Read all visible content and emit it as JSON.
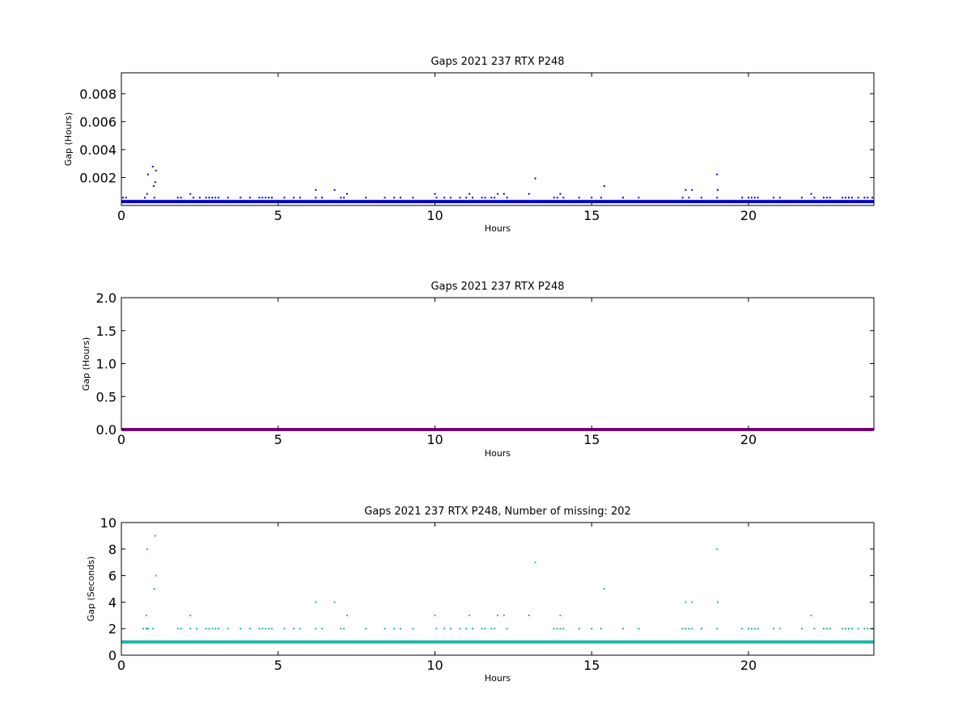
{
  "chart_data": [
    {
      "type": "scatter",
      "title": "Gaps 2021 237 RTX  P248",
      "xlabel": "Hours",
      "ylabel": "Gap (Hours)",
      "xlim": [
        0,
        24
      ],
      "ylim": [
        0,
        0.0095
      ],
      "xticks": [
        0,
        5,
        10,
        15,
        20
      ],
      "yticks": [
        0.002,
        0.004,
        0.006,
        0.008
      ],
      "ytick_labels": [
        "0.002",
        "0.004",
        "0.006",
        "0.008"
      ],
      "baseline": 0.00028,
      "color": "#0000cc",
      "series": [
        {
          "values": [
            [
              0.05,
              0.00056
            ],
            [
              0.15,
              0.00056
            ],
            [
              0.75,
              0.00056
            ],
            [
              0.82,
              0.00083
            ],
            [
              0.85,
              0.00222
            ],
            [
              1.0,
              0.00278
            ],
            [
              1.03,
              0.00139
            ],
            [
              1.05,
              0.00056
            ],
            [
              1.08,
              0.00167
            ],
            [
              1.1,
              0.0025
            ],
            [
              1.8,
              0.00056
            ],
            [
              1.9,
              0.00056
            ],
            [
              2.2,
              0.00083
            ],
            [
              2.3,
              0.00056
            ],
            [
              2.5,
              0.00056
            ],
            [
              2.7,
              0.00056
            ],
            [
              2.8,
              0.00056
            ],
            [
              2.9,
              0.00056
            ],
            [
              3.0,
              0.00056
            ],
            [
              3.1,
              0.00056
            ],
            [
              3.4,
              0.00056
            ],
            [
              3.8,
              0.00056
            ],
            [
              4.1,
              0.00056
            ],
            [
              4.4,
              0.00056
            ],
            [
              4.5,
              0.00056
            ],
            [
              4.6,
              0.00056
            ],
            [
              4.7,
              0.00056
            ],
            [
              4.8,
              0.00056
            ],
            [
              5.2,
              0.00056
            ],
            [
              5.5,
              0.00056
            ],
            [
              5.7,
              0.00056
            ],
            [
              6.2,
              0.00111
            ],
            [
              6.2,
              0.00056
            ],
            [
              6.4,
              0.00056
            ],
            [
              6.8,
              0.00111
            ],
            [
              7.0,
              0.00056
            ],
            [
              7.1,
              0.00056
            ],
            [
              7.2,
              0.00083
            ],
            [
              7.8,
              0.00056
            ],
            [
              8.4,
              0.00056
            ],
            [
              8.7,
              0.00056
            ],
            [
              8.9,
              0.00056
            ],
            [
              9.3,
              0.00056
            ],
            [
              10.0,
              0.00083
            ],
            [
              10.05,
              0.00056
            ],
            [
              10.3,
              0.00056
            ],
            [
              10.5,
              0.00056
            ],
            [
              10.8,
              0.00056
            ],
            [
              11.0,
              0.00056
            ],
            [
              11.1,
              0.00083
            ],
            [
              11.2,
              0.00056
            ],
            [
              11.5,
              0.00056
            ],
            [
              11.6,
              0.00056
            ],
            [
              11.8,
              0.00056
            ],
            [
              11.9,
              0.00056
            ],
            [
              12.0,
              0.00083
            ],
            [
              12.2,
              0.00083
            ],
            [
              12.3,
              0.00056
            ],
            [
              13.0,
              0.00083
            ],
            [
              13.2,
              0.00194
            ],
            [
              13.8,
              0.00056
            ],
            [
              13.9,
              0.00056
            ],
            [
              14.0,
              0.00083
            ],
            [
              14.1,
              0.00056
            ],
            [
              14.6,
              0.00056
            ],
            [
              15.0,
              0.00056
            ],
            [
              15.3,
              0.00056
            ],
            [
              15.4,
              0.00139
            ],
            [
              16.0,
              0.00056
            ],
            [
              16.5,
              0.00056
            ],
            [
              17.9,
              0.00056
            ],
            [
              18.0,
              0.00111
            ],
            [
              18.1,
              0.00056
            ],
            [
              18.2,
              0.00111
            ],
            [
              18.5,
              0.00056
            ],
            [
              19.0,
              0.00222
            ],
            [
              19.02,
              0.00111
            ],
            [
              19.0,
              0.00056
            ],
            [
              19.8,
              0.00056
            ],
            [
              20.0,
              0.00056
            ],
            [
              20.1,
              0.00056
            ],
            [
              20.2,
              0.00056
            ],
            [
              20.3,
              0.00056
            ],
            [
              20.8,
              0.00056
            ],
            [
              21.0,
              0.00056
            ],
            [
              21.7,
              0.00056
            ],
            [
              22.0,
              0.00083
            ],
            [
              22.1,
              0.00056
            ],
            [
              22.4,
              0.00056
            ],
            [
              22.5,
              0.00056
            ],
            [
              22.6,
              0.00056
            ],
            [
              23.0,
              0.00056
            ],
            [
              23.1,
              0.00056
            ],
            [
              23.2,
              0.00056
            ],
            [
              23.3,
              0.00056
            ],
            [
              23.5,
              0.00056
            ],
            [
              23.7,
              0.00056
            ],
            [
              23.8,
              0.00056
            ],
            [
              23.95,
              0.00056
            ]
          ]
        }
      ]
    },
    {
      "type": "scatter",
      "title": "Gaps 2021 237 RTX  P248",
      "xlabel": "Hours",
      "ylabel": "Gap (Hours)",
      "xlim": [
        0,
        24
      ],
      "ylim": [
        0,
        2.0
      ],
      "xticks": [
        0,
        5,
        10,
        15,
        20
      ],
      "yticks": [
        0,
        0.5,
        1.0,
        1.5,
        2.0
      ],
      "ytick_labels": [
        "0.0",
        "0.5",
        "1.0",
        "1.5",
        "2.0"
      ],
      "baseline": 0.0,
      "color": "#990099",
      "series": [
        {
          "values": []
        }
      ]
    },
    {
      "type": "scatter",
      "title": "Gaps 2021 237 RTX  P248, Number of missing: 202",
      "xlabel": "Hours",
      "ylabel": "Gap (Seconds)",
      "xlim": [
        0,
        24
      ],
      "ylim": [
        0,
        10
      ],
      "xticks": [
        0,
        5,
        10,
        15,
        20
      ],
      "yticks": [
        0,
        2,
        4,
        6,
        8,
        10
      ],
      "ytick_labels": [
        "0",
        "2",
        "4",
        "6",
        "8",
        "10"
      ],
      "baseline": 1,
      "color": "#20b2aa",
      "series": [
        {
          "values": [
            [
              0.7,
              2
            ],
            [
              0.8,
              2
            ],
            [
              0.8,
              3
            ],
            [
              0.82,
              8
            ],
            [
              0.85,
              2
            ],
            [
              1.0,
              2
            ],
            [
              1.05,
              5
            ],
            [
              1.08,
              9
            ],
            [
              1.1,
              6
            ],
            [
              1.8,
              2
            ],
            [
              1.9,
              2
            ],
            [
              2.2,
              3
            ],
            [
              2.2,
              2
            ],
            [
              2.4,
              2
            ],
            [
              2.7,
              2
            ],
            [
              2.8,
              2
            ],
            [
              2.9,
              2
            ],
            [
              3.0,
              2
            ],
            [
              3.1,
              2
            ],
            [
              3.4,
              2
            ],
            [
              3.8,
              2
            ],
            [
              4.1,
              2
            ],
            [
              4.4,
              2
            ],
            [
              4.5,
              2
            ],
            [
              4.6,
              2
            ],
            [
              4.7,
              2
            ],
            [
              4.8,
              2
            ],
            [
              5.2,
              2
            ],
            [
              5.5,
              2
            ],
            [
              5.7,
              2
            ],
            [
              6.2,
              4
            ],
            [
              6.2,
              2
            ],
            [
              6.4,
              2
            ],
            [
              6.8,
              4
            ],
            [
              7.0,
              2
            ],
            [
              7.1,
              2
            ],
            [
              7.2,
              3
            ],
            [
              7.8,
              2
            ],
            [
              8.4,
              2
            ],
            [
              8.7,
              2
            ],
            [
              8.9,
              2
            ],
            [
              9.3,
              2
            ],
            [
              10.0,
              3
            ],
            [
              10.05,
              2
            ],
            [
              10.3,
              2
            ],
            [
              10.5,
              2
            ],
            [
              10.8,
              2
            ],
            [
              11.0,
              2
            ],
            [
              11.1,
              3
            ],
            [
              11.2,
              2
            ],
            [
              11.5,
              2
            ],
            [
              11.6,
              2
            ],
            [
              11.8,
              2
            ],
            [
              11.9,
              2
            ],
            [
              12.0,
              3
            ],
            [
              12.2,
              3
            ],
            [
              12.3,
              2
            ],
            [
              13.0,
              3
            ],
            [
              13.2,
              7
            ],
            [
              13.8,
              2
            ],
            [
              13.9,
              2
            ],
            [
              14.0,
              3
            ],
            [
              14.0,
              2
            ],
            [
              14.1,
              2
            ],
            [
              14.6,
              2
            ],
            [
              15.0,
              2
            ],
            [
              15.3,
              2
            ],
            [
              15.4,
              5
            ],
            [
              16.0,
              2
            ],
            [
              16.5,
              2
            ],
            [
              17.9,
              2
            ],
            [
              18.0,
              4
            ],
            [
              18.0,
              2
            ],
            [
              18.1,
              2
            ],
            [
              18.2,
              4
            ],
            [
              18.2,
              2
            ],
            [
              18.5,
              2
            ],
            [
              19.0,
              8
            ],
            [
              19.02,
              4
            ],
            [
              19.0,
              2
            ],
            [
              19.8,
              2
            ],
            [
              20.0,
              2
            ],
            [
              20.1,
              2
            ],
            [
              20.2,
              2
            ],
            [
              20.3,
              2
            ],
            [
              20.8,
              2
            ],
            [
              21.0,
              2
            ],
            [
              21.7,
              2
            ],
            [
              22.0,
              3
            ],
            [
              22.1,
              2
            ],
            [
              22.4,
              2
            ],
            [
              22.5,
              2
            ],
            [
              22.6,
              2
            ],
            [
              23.0,
              2
            ],
            [
              23.1,
              2
            ],
            [
              23.2,
              2
            ],
            [
              23.3,
              2
            ],
            [
              23.5,
              2
            ],
            [
              23.7,
              2
            ],
            [
              23.8,
              2
            ],
            [
              23.95,
              2
            ]
          ]
        }
      ]
    }
  ]
}
